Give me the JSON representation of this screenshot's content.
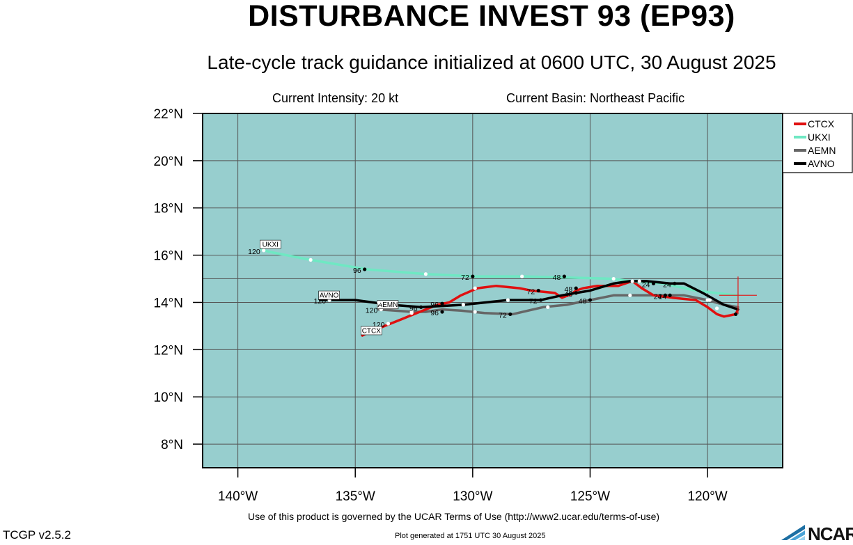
{
  "header": {
    "title": "DISTURBANCE INVEST 93 (EP93)",
    "subtitle": "Late-cycle track guidance initialized at 0600 UTC, 30 August 2025",
    "current_intensity": "Current Intensity: 20 kt",
    "current_basin": "Current Basin: Northeast Pacific"
  },
  "footer": {
    "terms": "Use of this product is governed by the UCAR Terms of Use (http://www2.ucar.edu/terms-of-use)",
    "version": "TCGP v2.5.2",
    "generated": "Plot generated at 1751 UTC   30 August 2025",
    "logo_text": "NCAR"
  },
  "colors": {
    "ocean": "#97cece",
    "grid": "#555555"
  },
  "chart_data": {
    "type": "line",
    "title": "DISTURBANCE INVEST 93 (EP93)",
    "xlim": [
      -141.5,
      -116.8
    ],
    "ylim": [
      7,
      22
    ],
    "x_ticks": [
      -140,
      -135,
      -130,
      -125,
      -120
    ],
    "x_tick_labels": [
      "140°W",
      "135°W",
      "130°W",
      "125°W",
      "120°W"
    ],
    "y_ticks": [
      8,
      10,
      12,
      14,
      16,
      18,
      20,
      22
    ],
    "y_tick_labels": [
      "8°N",
      "10°N",
      "12°N",
      "14°N",
      "16°N",
      "18°N",
      "20°N",
      "22°N"
    ],
    "grid": true,
    "legend_placement": "top-right",
    "current_position": {
      "lon": -118.7,
      "lat": 14.3
    },
    "series": [
      {
        "name": "CTCX",
        "color": "#e01010",
        "lon": [
          -118.7,
          -118.8,
          -119.3,
          -119.6,
          -120.0,
          -120.5,
          -121.5,
          -122.3,
          -122.8,
          -123.2,
          -123.8,
          -124.3,
          -124.7,
          -125.3,
          -125.6,
          -125.8,
          -126.2,
          -126.5,
          -127.5,
          -128.0,
          -129.0,
          -129.8,
          -130.5,
          -131.0,
          -131.5,
          -132.0,
          -132.5,
          -133.0,
          -133.5,
          -134.0,
          -134.5,
          -134.7
        ],
        "lat": [
          13.7,
          13.5,
          13.4,
          13.5,
          13.8,
          14.1,
          14.2,
          14.3,
          14.6,
          14.9,
          14.7,
          14.7,
          14.7,
          14.6,
          14.5,
          14.35,
          14.2,
          14.4,
          14.5,
          14.6,
          14.7,
          14.6,
          14.3,
          14.0,
          13.9,
          13.7,
          13.5,
          13.3,
          13.1,
          12.9,
          12.7,
          12.6
        ],
        "markers": [
          {
            "lon": -118.8,
            "lat": 13.5,
            "label": "",
            "fill": "black"
          },
          {
            "lon": -119.6,
            "lat": 13.75,
            "label": "",
            "fill": "white"
          },
          {
            "lon": -121.6,
            "lat": 14.3,
            "label": "24",
            "fill": "black"
          },
          {
            "lon": -123.2,
            "lat": 14.9,
            "label": "",
            "fill": "white"
          },
          {
            "lon": -125.6,
            "lat": 14.6,
            "label": "48",
            "fill": "black"
          },
          {
            "lon": -127.2,
            "lat": 14.5,
            "label": "72",
            "fill": "black"
          },
          {
            "lon": -129.9,
            "lat": 14.6,
            "label": "",
            "fill": "white"
          },
          {
            "lon": -131.3,
            "lat": 13.95,
            "label": "96",
            "fill": "black"
          },
          {
            "lon": -132.6,
            "lat": 13.55,
            "label": "",
            "fill": "white"
          },
          {
            "lon": -133.6,
            "lat": 13.1,
            "label": "120",
            "fill": "white"
          }
        ],
        "box_label": "CTCX"
      },
      {
        "name": "UKXI",
        "color": "#6fe8c3",
        "lon": [
          -118.7,
          -119.2,
          -120.5,
          -121.9,
          -123.3,
          -124.0,
          -126.0,
          -127.8,
          -129.9,
          -132.0,
          -134.5,
          -136.9,
          -138.7,
          -139.0
        ],
        "lat": [
          14.3,
          14.35,
          14.5,
          14.8,
          14.9,
          15.0,
          15.05,
          15.1,
          15.1,
          15.2,
          15.4,
          15.8,
          16.15,
          16.25
        ],
        "markers": [
          {
            "lon": -119.9,
            "lat": 14.1,
            "label": "",
            "fill": "white"
          },
          {
            "lon": -122.3,
            "lat": 14.8,
            "label": "24",
            "fill": "black"
          },
          {
            "lon": -124.0,
            "lat": 15.0,
            "label": "",
            "fill": "white"
          },
          {
            "lon": -126.1,
            "lat": 15.1,
            "label": "48",
            "fill": "black"
          },
          {
            "lon": -127.9,
            "lat": 15.1,
            "label": "",
            "fill": "white"
          },
          {
            "lon": -130.0,
            "lat": 15.1,
            "label": "72",
            "fill": "black"
          },
          {
            "lon": -132.0,
            "lat": 15.2,
            "label": "",
            "fill": "white"
          },
          {
            "lon": -134.6,
            "lat": 15.4,
            "label": "96",
            "fill": "black"
          },
          {
            "lon": -136.9,
            "lat": 15.8,
            "label": "",
            "fill": "white"
          },
          {
            "lon": -138.9,
            "lat": 16.2,
            "label": "120",
            "fill": "white"
          }
        ],
        "box_label": "UKXI"
      },
      {
        "name": "AEMN",
        "color": "#666666",
        "lon": [
          -118.7,
          -119.3,
          -120.0,
          -121.0,
          -122.0,
          -123.0,
          -124.0,
          -125.0,
          -126.0,
          -127.0,
          -128.3,
          -129.5,
          -130.5,
          -131.3,
          -132.0,
          -132.6,
          -133.3,
          -134.0
        ],
        "lat": [
          13.8,
          13.9,
          14.1,
          14.3,
          14.3,
          14.3,
          14.3,
          14.1,
          13.9,
          13.8,
          13.5,
          13.55,
          13.65,
          13.7,
          13.6,
          13.6,
          13.65,
          13.7
        ],
        "markers": [
          {
            "lon": -121.8,
            "lat": 14.3,
            "label": "24",
            "fill": "black"
          },
          {
            "lon": -123.3,
            "lat": 14.3,
            "label": "",
            "fill": "white"
          },
          {
            "lon": -125.0,
            "lat": 14.1,
            "label": "48",
            "fill": "black"
          },
          {
            "lon": -126.8,
            "lat": 13.8,
            "label": "",
            "fill": "white"
          },
          {
            "lon": -128.4,
            "lat": 13.5,
            "label": "72",
            "fill": "black"
          },
          {
            "lon": -129.9,
            "lat": 13.6,
            "label": "",
            "fill": "white"
          },
          {
            "lon": -131.3,
            "lat": 13.6,
            "label": "96",
            "fill": "black"
          },
          {
            "lon": -132.6,
            "lat": 13.6,
            "label": "",
            "fill": "white"
          },
          {
            "lon": -133.9,
            "lat": 13.7,
            "label": "120",
            "fill": "white"
          }
        ],
        "box_label": "AEMN"
      },
      {
        "name": "AVNO",
        "color": "#000000",
        "lon": [
          -118.7,
          -119.3,
          -120.2,
          -121.0,
          -121.6,
          -122.6,
          -123.3,
          -124.0,
          -125.0,
          -126.2,
          -127.1,
          -128.5,
          -130.4,
          -132.2,
          -133.5,
          -135.0,
          -136.5
        ],
        "lat": [
          13.7,
          13.9,
          14.4,
          14.8,
          14.8,
          14.9,
          14.9,
          14.8,
          14.5,
          14.3,
          14.1,
          14.1,
          13.9,
          13.8,
          13.9,
          14.1,
          14.1
        ],
        "markers": [
          {
            "lon": -120.0,
            "lat": 14.1,
            "label": "",
            "fill": "white"
          },
          {
            "lon": -121.4,
            "lat": 14.8,
            "label": "24",
            "fill": "black"
          },
          {
            "lon": -122.9,
            "lat": 14.9,
            "label": "",
            "fill": "white"
          },
          {
            "lon": -125.6,
            "lat": 14.4,
            "label": "48",
            "fill": "black"
          },
          {
            "lon": -127.1,
            "lat": 14.1,
            "label": "72",
            "fill": "black"
          },
          {
            "lon": -128.5,
            "lat": 14.1,
            "label": "",
            "fill": "white"
          },
          {
            "lon": -130.4,
            "lat": 13.9,
            "label": "",
            "fill": "white"
          },
          {
            "lon": -132.2,
            "lat": 13.8,
            "label": "96",
            "fill": "black"
          },
          {
            "lon": -134.0,
            "lat": 14.0,
            "label": "",
            "fill": "white"
          },
          {
            "lon": -136.1,
            "lat": 14.1,
            "label": "120",
            "fill": "white"
          }
        ],
        "box_label": "AVNO"
      }
    ]
  }
}
